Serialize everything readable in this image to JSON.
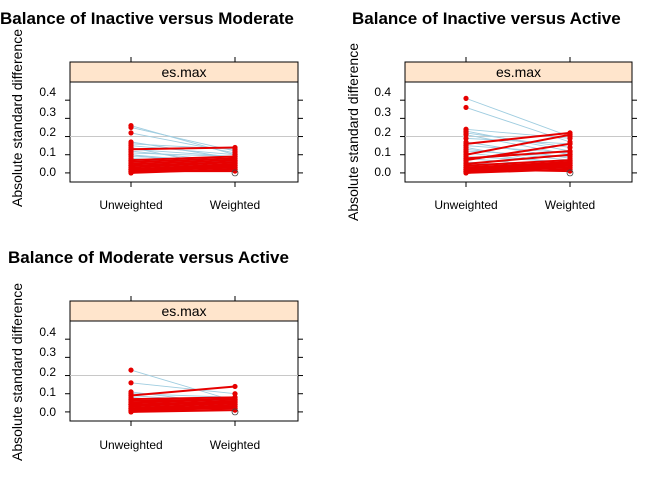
{
  "chart_data": [
    {
      "type": "line",
      "title": "Balance of Inactive versus Moderate",
      "ylabel": "Absolute standard difference",
      "strip": "es.max",
      "categories": [
        "Unweighted",
        "Weighted"
      ],
      "yticks": [
        "0.0",
        "0.1",
        "0.2",
        "0.3",
        "0.4"
      ],
      "ylim": [
        -0.05,
        0.5
      ],
      "refline": 0.2,
      "grid": false,
      "series_faint": [
        [
          0.26,
          0.1
        ],
        [
          0.25,
          0.12
        ],
        [
          0.22,
          0.11
        ],
        [
          0.17,
          0.08
        ],
        [
          0.16,
          0.13
        ],
        [
          0.15,
          0.1
        ],
        [
          0.14,
          0.02
        ],
        [
          0.13,
          0.09
        ],
        [
          0.12,
          0.06
        ],
        [
          0.11,
          0.09
        ],
        [
          0.1,
          0.05
        ],
        [
          0.1,
          0.02
        ],
        [
          0.09,
          0.07
        ],
        [
          0.08,
          0.04
        ],
        [
          0.07,
          0.06
        ],
        [
          0.06,
          0.03
        ],
        [
          0.05,
          0.07
        ],
        [
          0.04,
          0.02
        ],
        [
          0.03,
          0.05
        ],
        [
          0.02,
          0.03
        ]
      ],
      "series_bold": [
        [
          0.13,
          0.14
        ],
        [
          0.07,
          0.09
        ],
        [
          0.06,
          0.08
        ],
        [
          0.05,
          0.07
        ],
        [
          0.04,
          0.06
        ],
        [
          0.03,
          0.06
        ],
        [
          0.02,
          0.05
        ],
        [
          0.02,
          0.04
        ],
        [
          0.01,
          0.04
        ],
        [
          0.01,
          0.03
        ],
        [
          0.0,
          0.02
        ],
        [
          0.0,
          0.05
        ],
        [
          0.01,
          0.01
        ],
        [
          0.02,
          0.03
        ]
      ]
    },
    {
      "type": "line",
      "title": "Balance of Inactive versus Active",
      "ylabel": "Absolute standard difference",
      "strip": "es.max",
      "categories": [
        "Unweighted",
        "Weighted"
      ],
      "yticks": [
        "0.0",
        "0.1",
        "0.2",
        "0.3",
        "0.4"
      ],
      "ylim": [
        -0.05,
        0.5
      ],
      "refline": 0.2,
      "grid": false,
      "series_faint": [
        [
          0.41,
          0.2
        ],
        [
          0.36,
          0.17
        ],
        [
          0.24,
          0.19
        ],
        [
          0.23,
          0.12
        ],
        [
          0.22,
          0.14
        ],
        [
          0.21,
          0.1
        ],
        [
          0.19,
          0.16
        ],
        [
          0.17,
          0.08
        ],
        [
          0.15,
          0.11
        ],
        [
          0.14,
          0.04
        ],
        [
          0.13,
          0.07
        ],
        [
          0.12,
          0.09
        ],
        [
          0.11,
          0.05
        ],
        [
          0.09,
          0.06
        ],
        [
          0.08,
          0.03
        ],
        [
          0.06,
          0.02
        ],
        [
          0.05,
          0.04
        ],
        [
          0.03,
          0.05
        ]
      ],
      "series_bold": [
        [
          0.16,
          0.22
        ],
        [
          0.1,
          0.21
        ],
        [
          0.08,
          0.12
        ],
        [
          0.07,
          0.16
        ],
        [
          0.05,
          0.1
        ],
        [
          0.04,
          0.07
        ],
        [
          0.03,
          0.06
        ],
        [
          0.03,
          0.05
        ],
        [
          0.02,
          0.06
        ],
        [
          0.02,
          0.04
        ],
        [
          0.01,
          0.05
        ],
        [
          0.01,
          0.03
        ],
        [
          0.0,
          0.04
        ],
        [
          0.0,
          0.02
        ],
        [
          0.01,
          0.06
        ],
        [
          0.02,
          0.01
        ]
      ]
    },
    {
      "type": "line",
      "title": "Balance of Moderate versus Active",
      "ylabel": "Absolute standard difference",
      "strip": "es.max",
      "categories": [
        "Unweighted",
        "Weighted"
      ],
      "yticks": [
        "0.0",
        "0.1",
        "0.2",
        "0.3",
        "0.4"
      ],
      "ylim": [
        -0.05,
        0.5
      ],
      "refline": 0.2,
      "grid": false,
      "series_faint": [
        [
          0.23,
          0.06
        ],
        [
          0.16,
          0.1
        ],
        [
          0.11,
          0.04
        ],
        [
          0.1,
          0.08
        ],
        [
          0.09,
          0.05
        ],
        [
          0.08,
          0.02
        ],
        [
          0.07,
          0.06
        ],
        [
          0.06,
          0.03
        ],
        [
          0.05,
          0.07
        ],
        [
          0.04,
          0.01
        ],
        [
          0.03,
          0.04
        ],
        [
          0.02,
          0.02
        ]
      ],
      "series_bold": [
        [
          0.09,
          0.14
        ],
        [
          0.07,
          0.08
        ],
        [
          0.06,
          0.07
        ],
        [
          0.05,
          0.07
        ],
        [
          0.04,
          0.06
        ],
        [
          0.04,
          0.05
        ],
        [
          0.03,
          0.06
        ],
        [
          0.02,
          0.05
        ],
        [
          0.02,
          0.03
        ],
        [
          0.01,
          0.04
        ],
        [
          0.01,
          0.02
        ],
        [
          0.0,
          0.03
        ],
        [
          0.0,
          0.01
        ]
      ]
    }
  ],
  "colors": {
    "bold_line": "#e60000",
    "bold_point": "#e60000",
    "faint_line": "#9fcde0",
    "strip_fill": "#ffe5cc",
    "refline": "#c8c8c8",
    "frame": "#000000",
    "open_point": "#444444"
  }
}
